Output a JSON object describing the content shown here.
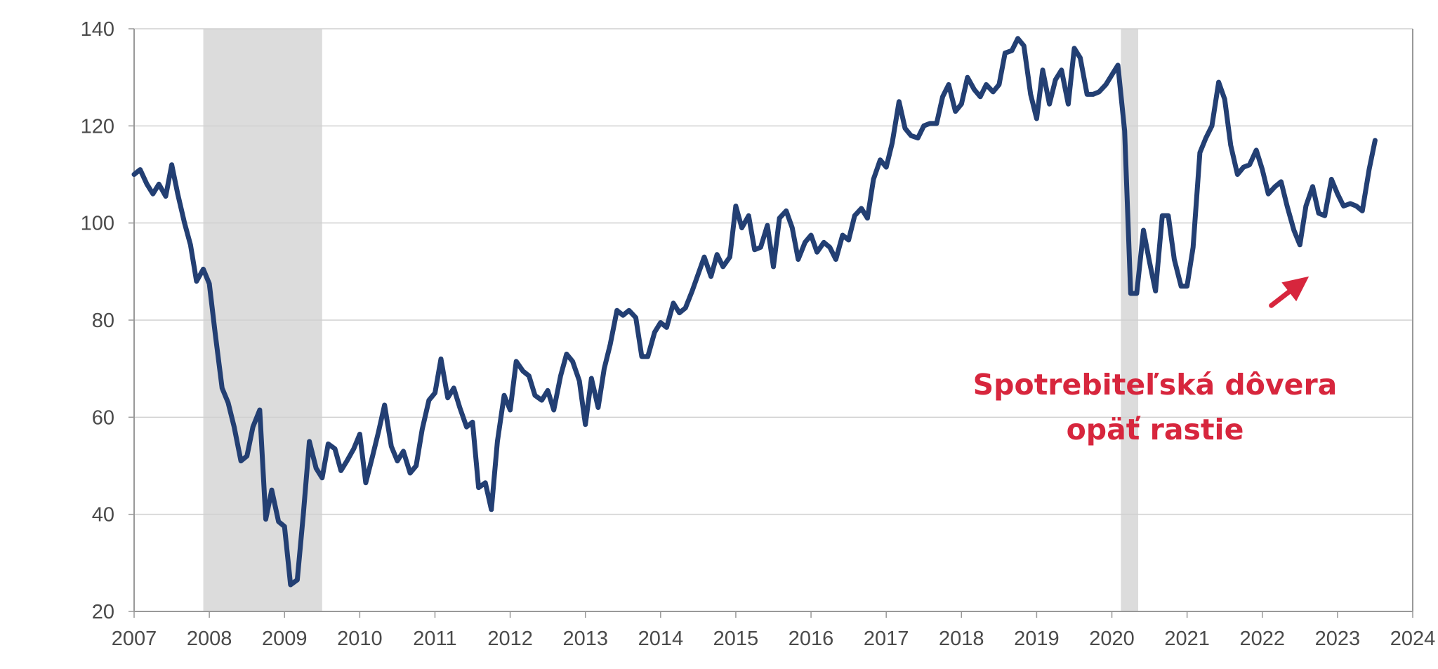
{
  "chart_data": {
    "type": "line",
    "x_ticks": [
      "2007",
      "2008",
      "2009",
      "2010",
      "2011",
      "2012",
      "2013",
      "2014",
      "2015",
      "2016",
      "2017",
      "2018",
      "2019",
      "2020",
      "2021",
      "2022",
      "2023",
      "2024"
    ],
    "y_ticks": [
      "20",
      "40",
      "60",
      "80",
      "100",
      "120",
      "140"
    ],
    "ylim": [
      20,
      140
    ],
    "xlim": [
      2007,
      2024
    ],
    "grid": "horizontal",
    "colors": {
      "line": "#233f73",
      "recession": "#dcdcdc",
      "annotation": "#d7263d",
      "grid": "#d0d0d0",
      "axis": "#999999"
    },
    "recession_shading": [
      {
        "from": 2007.92,
        "to": 2009.5
      },
      {
        "from": 2020.12,
        "to": 2020.35
      }
    ],
    "series": [
      {
        "values": [
          [
            2007.0,
            110
          ],
          [
            2007.08,
            111
          ],
          [
            2007.17,
            108
          ],
          [
            2007.25,
            106
          ],
          [
            2007.33,
            108
          ],
          [
            2007.42,
            105.5
          ],
          [
            2007.5,
            112
          ],
          [
            2007.58,
            106
          ],
          [
            2007.67,
            100
          ],
          [
            2007.75,
            95.5
          ],
          [
            2007.83,
            88
          ],
          [
            2007.92,
            90.5
          ],
          [
            2008.0,
            87.5
          ],
          [
            2008.08,
            77
          ],
          [
            2008.17,
            66
          ],
          [
            2008.25,
            63
          ],
          [
            2008.33,
            58
          ],
          [
            2008.42,
            51
          ],
          [
            2008.5,
            52
          ],
          [
            2008.58,
            58
          ],
          [
            2008.67,
            61.5
          ],
          [
            2008.75,
            39
          ],
          [
            2008.83,
            45
          ],
          [
            2008.92,
            38.5
          ],
          [
            2009.0,
            37.5
          ],
          [
            2009.08,
            25.5
          ],
          [
            2009.17,
            26.5
          ],
          [
            2009.25,
            40
          ],
          [
            2009.33,
            55
          ],
          [
            2009.42,
            49.5
          ],
          [
            2009.5,
            47.5
          ],
          [
            2009.58,
            54.5
          ],
          [
            2009.67,
            53.5
          ],
          [
            2009.75,
            49
          ],
          [
            2009.83,
            51
          ],
          [
            2009.92,
            53.5
          ],
          [
            2010.0,
            56.5
          ],
          [
            2010.08,
            46.5
          ],
          [
            2010.17,
            52
          ],
          [
            2010.25,
            57
          ],
          [
            2010.33,
            62.5
          ],
          [
            2010.42,
            54
          ],
          [
            2010.5,
            51
          ],
          [
            2010.58,
            53
          ],
          [
            2010.67,
            48.5
          ],
          [
            2010.75,
            50
          ],
          [
            2010.83,
            57.5
          ],
          [
            2010.92,
            63.5
          ],
          [
            2011.0,
            65
          ],
          [
            2011.08,
            72
          ],
          [
            2011.17,
            64
          ],
          [
            2011.25,
            66
          ],
          [
            2011.33,
            62
          ],
          [
            2011.42,
            58
          ],
          [
            2011.5,
            59
          ],
          [
            2011.58,
            45.5
          ],
          [
            2011.67,
            46.5
          ],
          [
            2011.75,
            41
          ],
          [
            2011.83,
            55
          ],
          [
            2011.92,
            64.5
          ],
          [
            2012.0,
            61.5
          ],
          [
            2012.08,
            71.5
          ],
          [
            2012.17,
            69.5
          ],
          [
            2012.25,
            68.5
          ],
          [
            2012.33,
            64.5
          ],
          [
            2012.42,
            63.5
          ],
          [
            2012.5,
            65.5
          ],
          [
            2012.58,
            61.5
          ],
          [
            2012.67,
            68.5
          ],
          [
            2012.75,
            73
          ],
          [
            2012.83,
            71.5
          ],
          [
            2012.92,
            67.5
          ],
          [
            2013.0,
            58.5
          ],
          [
            2013.08,
            68
          ],
          [
            2013.17,
            62
          ],
          [
            2013.25,
            70
          ],
          [
            2013.33,
            75
          ],
          [
            2013.42,
            82
          ],
          [
            2013.5,
            81
          ],
          [
            2013.58,
            82
          ],
          [
            2013.67,
            80.5
          ],
          [
            2013.75,
            72.5
          ],
          [
            2013.83,
            72.5
          ],
          [
            2013.92,
            77.5
          ],
          [
            2014.0,
            79.5
          ],
          [
            2014.08,
            78.5
          ],
          [
            2014.17,
            83.5
          ],
          [
            2014.25,
            81.5
          ],
          [
            2014.33,
            82.5
          ],
          [
            2014.42,
            86
          ],
          [
            2014.5,
            89.5
          ],
          [
            2014.58,
            93
          ],
          [
            2014.67,
            89
          ],
          [
            2014.75,
            93.5
          ],
          [
            2014.83,
            91
          ],
          [
            2014.92,
            93
          ],
          [
            2015.0,
            103.5
          ],
          [
            2015.08,
            99
          ],
          [
            2015.17,
            101.5
          ],
          [
            2015.25,
            94.5
          ],
          [
            2015.33,
            95
          ],
          [
            2015.42,
            99.5
          ],
          [
            2015.5,
            91
          ],
          [
            2015.58,
            101
          ],
          [
            2015.67,
            102.5
          ],
          [
            2015.75,
            99
          ],
          [
            2015.83,
            92.5
          ],
          [
            2015.92,
            96
          ],
          [
            2016.0,
            97.5
          ],
          [
            2016.08,
            94
          ],
          [
            2016.17,
            96
          ],
          [
            2016.25,
            95
          ],
          [
            2016.33,
            92.5
          ],
          [
            2016.42,
            97.5
          ],
          [
            2016.5,
            96.5
          ],
          [
            2016.58,
            101.5
          ],
          [
            2016.67,
            103
          ],
          [
            2016.75,
            101
          ],
          [
            2016.83,
            109
          ],
          [
            2016.92,
            113
          ],
          [
            2017.0,
            111.5
          ],
          [
            2017.08,
            116.5
          ],
          [
            2017.17,
            125
          ],
          [
            2017.25,
            119.5
          ],
          [
            2017.33,
            118
          ],
          [
            2017.42,
            117.5
          ],
          [
            2017.5,
            120
          ],
          [
            2017.58,
            120.5
          ],
          [
            2017.67,
            120.5
          ],
          [
            2017.75,
            126
          ],
          [
            2017.83,
            128.5
          ],
          [
            2017.92,
            123
          ],
          [
            2018.0,
            124.5
          ],
          [
            2018.08,
            130
          ],
          [
            2018.17,
            127.5
          ],
          [
            2018.25,
            126
          ],
          [
            2018.33,
            128.5
          ],
          [
            2018.42,
            127
          ],
          [
            2018.5,
            128.5
          ],
          [
            2018.58,
            135
          ],
          [
            2018.67,
            135.5
          ],
          [
            2018.75,
            138
          ],
          [
            2018.83,
            136.5
          ],
          [
            2018.92,
            126.5
          ],
          [
            2019.0,
            121.5
          ],
          [
            2019.08,
            131.5
          ],
          [
            2019.17,
            124.5
          ],
          [
            2019.25,
            129.5
          ],
          [
            2019.33,
            131.5
          ],
          [
            2019.42,
            124.5
          ],
          [
            2019.5,
            136
          ],
          [
            2019.58,
            134
          ],
          [
            2019.67,
            126.5
          ],
          [
            2019.75,
            126.5
          ],
          [
            2019.83,
            127
          ],
          [
            2019.92,
            128.5
          ],
          [
            2020.0,
            130.5
          ],
          [
            2020.08,
            132.5
          ],
          [
            2020.17,
            119
          ],
          [
            2020.25,
            85.5
          ],
          [
            2020.33,
            85.5
          ],
          [
            2020.42,
            98.5
          ],
          [
            2020.5,
            92
          ],
          [
            2020.58,
            86
          ],
          [
            2020.67,
            101.5
          ],
          [
            2020.75,
            101.5
          ],
          [
            2020.83,
            92.5
          ],
          [
            2020.92,
            87
          ],
          [
            2021.0,
            87
          ],
          [
            2021.08,
            95
          ],
          [
            2021.17,
            114.5
          ],
          [
            2021.25,
            117.5
          ],
          [
            2021.33,
            120
          ],
          [
            2021.42,
            129
          ],
          [
            2021.5,
            125.5
          ],
          [
            2021.58,
            116
          ],
          [
            2021.67,
            110
          ],
          [
            2021.75,
            111.5
          ],
          [
            2021.83,
            112
          ],
          [
            2021.92,
            115
          ],
          [
            2022.0,
            111
          ],
          [
            2022.08,
            106
          ],
          [
            2022.17,
            107.5
          ],
          [
            2022.25,
            108.5
          ],
          [
            2022.33,
            103.5
          ],
          [
            2022.42,
            98.5
          ],
          [
            2022.5,
            95.5
          ],
          [
            2022.58,
            103.5
          ],
          [
            2022.67,
            107.5
          ],
          [
            2022.75,
            102
          ],
          [
            2022.83,
            101.5
          ],
          [
            2022.92,
            109
          ],
          [
            2023.0,
            106
          ],
          [
            2023.08,
            103.5
          ],
          [
            2023.17,
            104
          ],
          [
            2023.25,
            103.5
          ],
          [
            2023.33,
            102.5
          ],
          [
            2023.42,
            111
          ],
          [
            2023.5,
            117
          ]
        ]
      }
    ],
    "annotation": {
      "lines": [
        "Spotrebiteľská dôvera",
        "opäť rastie"
      ],
      "arrow_from": [
        2022.12,
        83
      ],
      "arrow_to": [
        2022.62,
        89
      ]
    }
  }
}
